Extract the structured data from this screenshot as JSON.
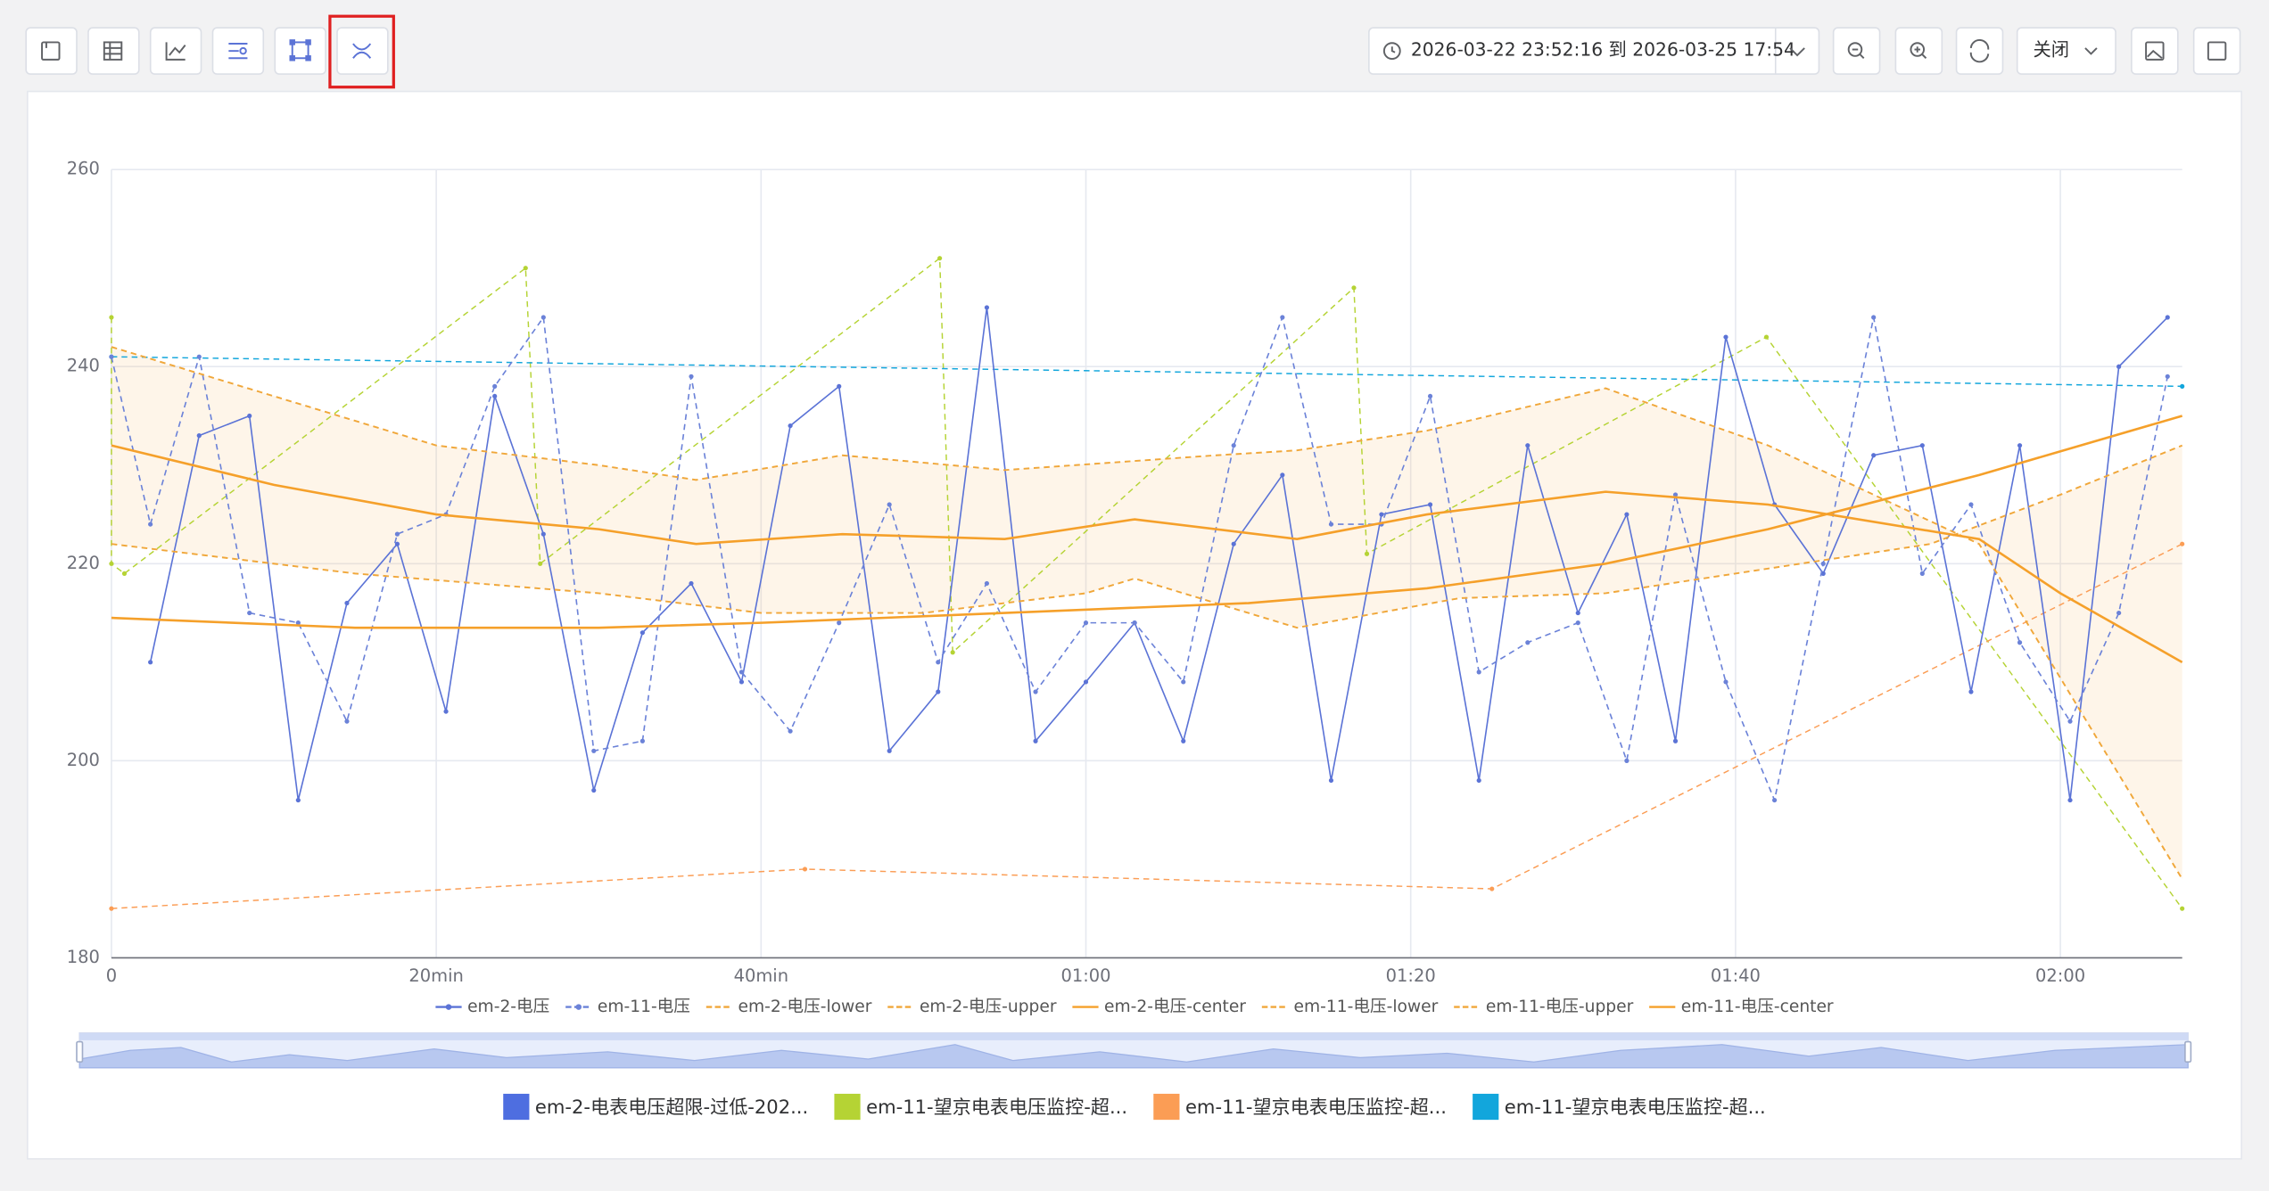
{
  "toolbar": {
    "date_range": "2026-03-22 23:52:16 到 2026-03-25 17:54",
    "dropdown": "关闭"
  },
  "chart_data": {
    "type": "line",
    "xlim": [
      0,
      127.5
    ],
    "ylim": [
      180,
      260
    ],
    "xticks": [
      0,
      {
        "value": 20,
        "label": "20min"
      },
      {
        "value": 40,
        "label": "40min"
      },
      {
        "value": 60,
        "label": "01:00"
      },
      {
        "value": 80,
        "label": "01:20"
      },
      {
        "value": 100,
        "label": "01:40"
      },
      {
        "value": 120,
        "label": "02:00"
      }
    ],
    "yticks": [
      180,
      200,
      220,
      240,
      260
    ],
    "grid": true,
    "series": [
      {
        "name": "em-2-电压",
        "color": "#5b73d6",
        "dashed": false,
        "markers": true,
        "x": [
          2.4,
          5.4,
          8.5,
          11.5,
          14.5,
          17.6,
          20.6,
          23.6,
          26.6,
          29.7,
          32.7,
          35.7,
          38.8,
          41.8,
          44.8,
          47.9,
          50.9,
          53.9,
          56.9,
          60.0,
          63.0,
          66.0,
          69.1,
          72.1,
          75.1,
          78.2,
          81.2,
          84.2,
          87.2,
          90.3,
          93.3,
          96.3,
          99.4,
          102.4,
          105.4,
          108.5,
          111.5,
          114.5,
          117.5,
          120.6,
          123.6,
          126.6
        ],
        "values": [
          210,
          233,
          235,
          196,
          216,
          222,
          205,
          237,
          223,
          197,
          213,
          218,
          208,
          234,
          238,
          201,
          207,
          246,
          202,
          208,
          214,
          202,
          222,
          229,
          198,
          225,
          226,
          198,
          232,
          215,
          225,
          202,
          243,
          226,
          219,
          231,
          232,
          207,
          232,
          196,
          240,
          245
        ]
      },
      {
        "name": "em-11-电压",
        "color": "#6b82d8",
        "dashed": true,
        "markers": true,
        "x": [
          0,
          2.4,
          5.4,
          8.5,
          11.5,
          14.5,
          17.6,
          20.6,
          23.6,
          26.6,
          29.7,
          32.7,
          35.7,
          38.8,
          41.8,
          44.8,
          47.9,
          50.9,
          53.9,
          56.9,
          60.0,
          63.0,
          66.0,
          69.1,
          72.1,
          75.1,
          78.2,
          81.2,
          84.2,
          87.2,
          90.3,
          93.3,
          96.3,
          99.4,
          102.4,
          105.4,
          108.5,
          111.5,
          114.5,
          117.5,
          120.6,
          123.6,
          126.6
        ],
        "values": [
          241,
          224,
          241,
          215,
          214,
          204,
          223,
          225,
          238,
          245,
          201,
          202,
          239,
          209,
          203,
          214,
          226,
          210,
          218,
          207,
          214,
          214,
          208,
          232,
          245,
          224,
          224,
          237,
          209,
          212,
          214,
          200,
          227,
          208,
          196,
          220,
          245,
          219,
          226,
          212,
          204,
          215,
          239
        ]
      },
      {
        "name": "em-2-电压-lower",
        "color": "#f0a73a",
        "dashed": true,
        "markers": false,
        "band": "lower",
        "x": [
          0,
          15,
          30,
          40,
          50,
          60,
          63,
          73,
          83,
          92,
          102,
          112,
          120,
          127.5
        ],
        "values": [
          222,
          219,
          217,
          215,
          215,
          217,
          218.5,
          213.5,
          216.5,
          217,
          219.5,
          222,
          227,
          232
        ]
      },
      {
        "name": "em-2-电压-upper",
        "color": "#f0a73a",
        "dashed": true,
        "markers": false,
        "band": "upper",
        "x": [
          0,
          10,
          20,
          30,
          36,
          45,
          55,
          68,
          73,
          81,
          92,
          102,
          115,
          127.5
        ],
        "values": [
          242,
          237,
          232,
          230,
          228.5,
          231,
          229.5,
          231,
          231.5,
          233.5,
          237.8,
          232,
          222,
          188
        ]
      },
      {
        "name": "em-2-电压-center",
        "color": "#f5a02a",
        "dashed": false,
        "markers": false,
        "x": [
          0,
          10,
          20,
          30,
          36,
          45,
          55,
          63,
          73,
          81,
          92,
          102,
          115,
          120,
          127.5
        ],
        "values": [
          232,
          228,
          225,
          223.5,
          222,
          223,
          222.5,
          224.5,
          222.5,
          225,
          227.3,
          226,
          222.5,
          217,
          210
        ]
      },
      {
        "name": "em-11-电压-lower",
        "color": "#f0a73a",
        "dashed": true,
        "markers": false,
        "x": [],
        "values": []
      },
      {
        "name": "em-11-电压-upper",
        "color": "#f0a73a",
        "dashed": true,
        "markers": false,
        "x": [],
        "values": []
      },
      {
        "name": "em-11-电压-center",
        "color": "#f5a02a",
        "dashed": false,
        "markers": false,
        "x": [
          0,
          15,
          30,
          40,
          55,
          70,
          81,
          92,
          102,
          115,
          127.5
        ],
        "values": [
          214.5,
          213.5,
          213.5,
          214,
          215,
          216,
          217.5,
          220,
          223.5,
          229,
          235
        ]
      }
    ],
    "alarm_series": [
      {
        "name": "em-2-电表电压超限-过低-202...",
        "color": "#4e6ee0"
      },
      {
        "name": "em-11-望京电表电压监控-超...",
        "color": "#b5d334",
        "x": [
          0,
          0,
          0.8,
          25.5,
          26.4,
          51.0,
          51.8,
          76.5,
          77.3,
          101.9,
          127.5
        ],
        "values": [
          245,
          220,
          219,
          250,
          220,
          251,
          211,
          248,
          221,
          243,
          185
        ]
      },
      {
        "name": "em-11-望京电表电压监控-超...",
        "color": "#fb9d55",
        "x": [
          0,
          42.7,
          85,
          127.5
        ],
        "values": [
          185,
          189,
          187,
          222
        ]
      },
      {
        "name": "em-11-望京电表电压监控-超...",
        "color": "#12a6dc",
        "x": [
          0,
          127.5
        ],
        "values": [
          241,
          238
        ]
      }
    ]
  }
}
